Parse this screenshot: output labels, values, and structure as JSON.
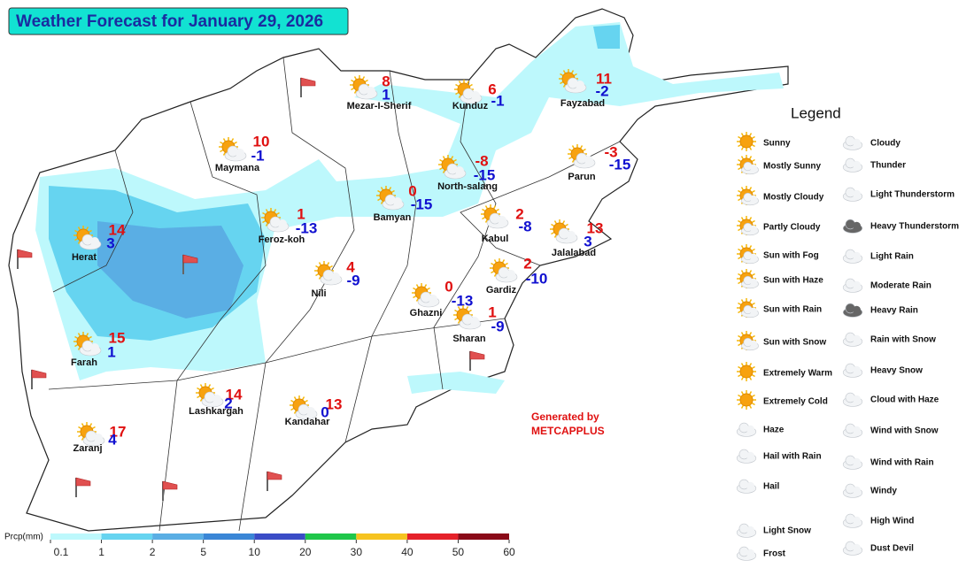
{
  "title": "Weather Forecast for January 29, 2026",
  "cities": [
    {
      "name": "Mezar-I-Sherif",
      "max": 8,
      "min": 1
    },
    {
      "name": "Kunduz",
      "max": 6,
      "min": -1
    },
    {
      "name": "Fayzabad",
      "max": 11,
      "min": -2
    },
    {
      "name": "Maymana",
      "max": 10,
      "min": -1
    },
    {
      "name": "North-salang",
      "max": -8,
      "min": -15
    },
    {
      "name": "Parun",
      "max": -3,
      "min": -15
    },
    {
      "name": "Bamyan",
      "max": 0,
      "min": -15
    },
    {
      "name": "Feroz-koh",
      "max": 1,
      "min": -13
    },
    {
      "name": "Herat",
      "max": 14,
      "min": 3
    },
    {
      "name": "Kabul",
      "max": 2,
      "min": -8
    },
    {
      "name": "Jalalabad",
      "max": 13,
      "min": 3
    },
    {
      "name": "Nili",
      "max": 4,
      "min": -9
    },
    {
      "name": "Ghazni",
      "max": 0,
      "min": -13
    },
    {
      "name": "Gardiz",
      "max": 2,
      "min": -10
    },
    {
      "name": "Sharan",
      "max": 1,
      "min": -9
    },
    {
      "name": "Farah",
      "max": 15,
      "min": 1
    },
    {
      "name": "Lashkargah",
      "max": 14,
      "min": 2
    },
    {
      "name": "Kandahar",
      "max": 13,
      "min": 0
    },
    {
      "name": "Zaranj",
      "max": 17,
      "min": 4
    }
  ],
  "legend": {
    "title": "Legend",
    "left": [
      "Sunny",
      "Mostly Sunny",
      "Mostly Cloudy",
      "Partly Cloudy",
      "Sun with Fog",
      "Sun with Haze",
      "Sun with Rain",
      "Sun with Snow",
      "Extremely Warm",
      "Extremely Cold",
      "Haze",
      "Hail with Rain",
      "Hail",
      "Light Snow",
      "Frost"
    ],
    "right": [
      "Cloudy",
      "Thunder",
      "Light Thunderstorm",
      "Heavy Thunderstorm",
      "Light Rain",
      "Moderate Rain",
      "Heavy Rain",
      "Rain with Snow",
      "Heavy Snow",
      "Cloud with Haze",
      "Wind with Snow",
      "Wind with Rain",
      "Windy",
      "High Wind",
      "Dust Devil"
    ]
  },
  "colorbar": {
    "label": "Prcp(mm)",
    "ticks": [
      0.1,
      1,
      2,
      5,
      10,
      20,
      30,
      40,
      50,
      60
    ],
    "colors": [
      "#bdf8fc",
      "#66d4f0",
      "#5aaee4",
      "#3a86d6",
      "#3a4cc6",
      "#1fc64a",
      "#f6c31f",
      "#e5212a",
      "#8a0a18"
    ]
  },
  "credit": {
    "line1": "Generated by",
    "line2": "METCAPPLUS"
  }
}
